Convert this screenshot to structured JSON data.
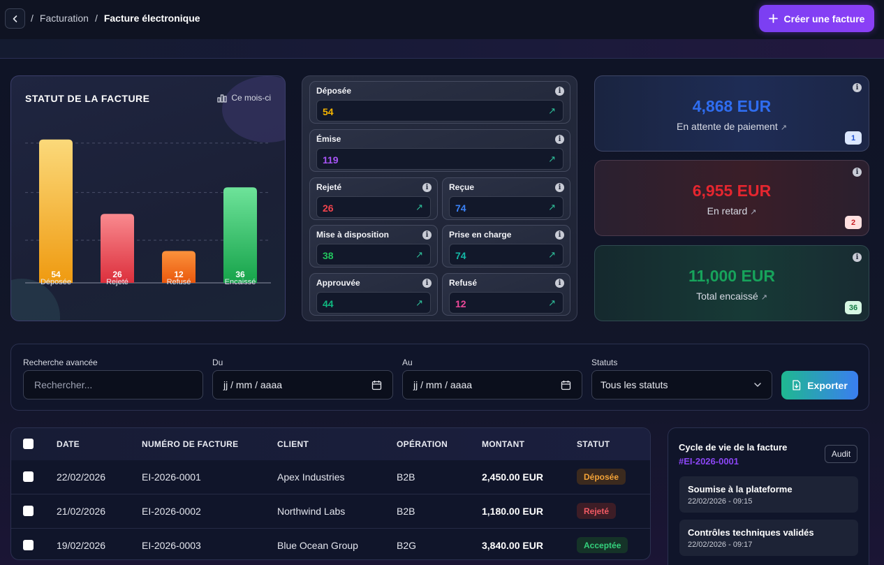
{
  "breadcrumb": {
    "parent": "Facturation",
    "separator": "/",
    "current": "Facture électronique"
  },
  "header": {
    "create_button": "Créer une facture",
    "create_icon": "plus-icon",
    "back_icon": "chevron-left-icon"
  },
  "chart_card": {
    "title": "STATUT DE LA FACTURE",
    "period_label": "Ce mois-ci",
    "period_icon": "bar-chart-icon"
  },
  "chart_data": {
    "type": "bar",
    "title": "STATUT DE LA FACTURE",
    "categories": [
      "Déposée",
      "Rejeté",
      "Refusé",
      "Encaissé"
    ],
    "values": [
      54,
      26,
      12,
      36
    ],
    "colors": [
      [
        "#fbd97a",
        "#ef9a10"
      ],
      [
        "#f98a8f",
        "#dc2f3c"
      ],
      [
        "#fb923c",
        "#ea580c"
      ],
      [
        "#6ee39a",
        "#16a34a"
      ]
    ],
    "ylim": [
      0,
      60
    ],
    "grid": true
  },
  "statuses": [
    {
      "label": "Déposée",
      "value": "54",
      "color": "#f4b400"
    },
    {
      "label": "Émise",
      "value": "119",
      "color": "#a855f7"
    },
    {
      "label": "Rejeté",
      "value": "26",
      "color": "#f0434c"
    },
    {
      "label": "Reçue",
      "value": "74",
      "color": "#3b82f6"
    },
    {
      "label": "Mise à disposition",
      "value": "38",
      "color": "#22c55e"
    },
    {
      "label": "Prise en charge",
      "value": "74",
      "color": "#14b8a6"
    },
    {
      "label": "Approuvée",
      "value": "44",
      "color": "#10b981"
    },
    {
      "label": "Refusé",
      "value": "12",
      "color": "#ec4899"
    }
  ],
  "kpis": [
    {
      "amount": "4,868 EUR",
      "label": "En attente de paiement",
      "badge": "1",
      "color": "#2f6df0"
    },
    {
      "amount": "6,955 EUR",
      "label": "En retard",
      "badge": "2",
      "color": "#e5262f"
    },
    {
      "amount": "11,000 EUR",
      "label": "Total encaissé",
      "badge": "36",
      "color": "#17a35b"
    }
  ],
  "filters": {
    "search_label": "Recherche avancée",
    "search_placeholder": "Rechercher...",
    "from_label": "Du",
    "from_value": "jj / mm / aaaa",
    "to_label": "Au",
    "to_value": "jj / mm / aaaa",
    "status_label": "Statuts",
    "status_value": "Tous les statuts",
    "export_button": "Exporter"
  },
  "table": {
    "columns": [
      "DATE",
      "NUMÉRO DE FACTURE",
      "CLIENT",
      "OPÉRATION",
      "MONTANT",
      "STATUT"
    ],
    "rows": [
      {
        "date": "22/02/2026",
        "number": "EI-2026-0001",
        "client": "Apex Industries",
        "operation": "B2B",
        "amount": "2,450.00 EUR",
        "status": "Déposée"
      },
      {
        "date": "21/02/2026",
        "number": "EI-2026-0002",
        "client": "Northwind Labs",
        "operation": "B2B",
        "amount": "1,180.00 EUR",
        "status": "Rejeté"
      },
      {
        "date": "19/02/2026",
        "number": "EI-2026-0003",
        "client": "Blue Ocean Group",
        "operation": "B2G",
        "amount": "3,840.00 EUR",
        "status": "Acceptée"
      }
    ]
  },
  "lifecycle": {
    "title": "Cycle de vie de la facture",
    "invoice_id": "#EI-2026-0001",
    "audit_button": "Audit",
    "steps": [
      {
        "title": "Soumise à la plateforme",
        "time": "22/02/2026 - 09:15"
      },
      {
        "title": "Contrôles techniques validés",
        "time": "22/02/2026 - 09:17"
      }
    ]
  }
}
